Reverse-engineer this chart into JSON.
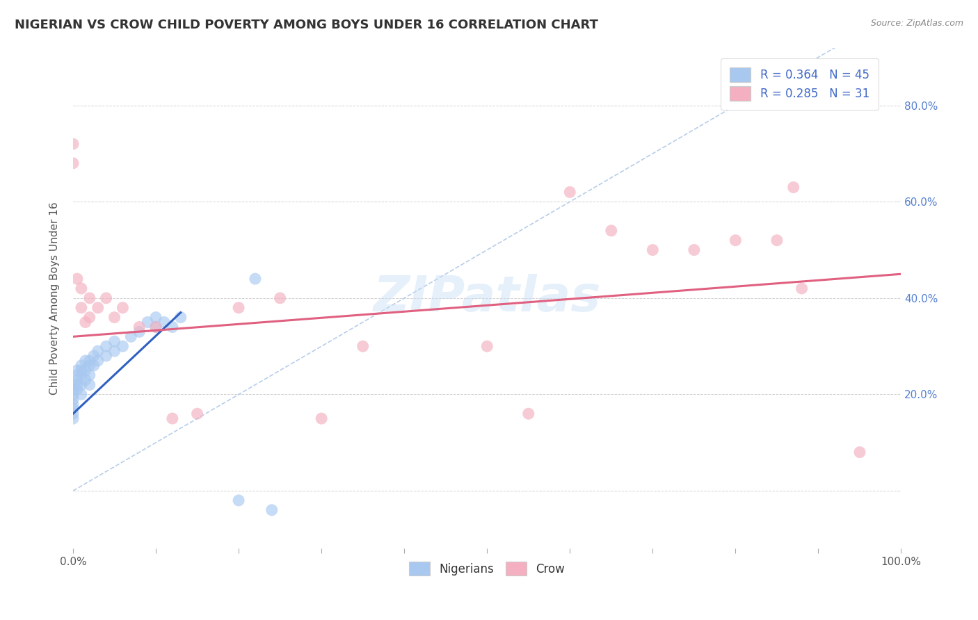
{
  "title": "NIGERIAN VS CROW CHILD POVERTY AMONG BOYS UNDER 16 CORRELATION CHART",
  "source": "Source: ZipAtlas.com",
  "ylabel": "Child Poverty Among Boys Under 16",
  "xlim": [
    0,
    1.0
  ],
  "ylim": [
    -0.12,
    0.92
  ],
  "xtick_positions": [
    0.0,
    0.1,
    0.2,
    0.3,
    0.4,
    0.5,
    0.6,
    0.7,
    0.8,
    0.9,
    1.0
  ],
  "ytick_positions": [
    0.0,
    0.2,
    0.4,
    0.6,
    0.8
  ],
  "ytick_labels": [
    "",
    "20.0%",
    "40.0%",
    "60.0%",
    "80.0%"
  ],
  "background_color": "#ffffff",
  "grid_color": "#cccccc",
  "nigerian_color": "#a8c8f0",
  "crow_color": "#f4b0c0",
  "nigerian_r": 0.364,
  "nigerian_n": 45,
  "crow_r": 0.285,
  "crow_n": 31,
  "legend_color": "#4169c8",
  "yaxis_color": "#5580d0",
  "diag_line_color": "#b0c8e8",
  "nigerian_trend_color": "#3060c0",
  "crow_trend_color": "#e06080",
  "nigerian_x": [
    0.0,
    0.0,
    0.0,
    0.0,
    0.0,
    0.0,
    0.0,
    0.0,
    0.005,
    0.005,
    0.005,
    0.005,
    0.005,
    0.01,
    0.01,
    0.01,
    0.01,
    0.01,
    0.015,
    0.015,
    0.015,
    0.02,
    0.02,
    0.02,
    0.02,
    0.025,
    0.025,
    0.03,
    0.03,
    0.04,
    0.04,
    0.05,
    0.05,
    0.06,
    0.07,
    0.08,
    0.09,
    0.1,
    0.1,
    0.11,
    0.12,
    0.13,
    0.2,
    0.22,
    0.24
  ],
  "nigerian_y": [
    0.22,
    0.21,
    0.2,
    0.19,
    0.18,
    0.17,
    0.16,
    0.15,
    0.25,
    0.24,
    0.23,
    0.22,
    0.21,
    0.26,
    0.25,
    0.24,
    0.22,
    0.2,
    0.27,
    0.25,
    0.23,
    0.27,
    0.26,
    0.24,
    0.22,
    0.28,
    0.26,
    0.29,
    0.27,
    0.3,
    0.28,
    0.31,
    0.29,
    0.3,
    0.32,
    0.33,
    0.35,
    0.36,
    0.34,
    0.35,
    0.34,
    0.36,
    -0.02,
    0.44,
    -0.04
  ],
  "crow_x": [
    0.0,
    0.0,
    0.005,
    0.01,
    0.01,
    0.015,
    0.02,
    0.02,
    0.03,
    0.04,
    0.05,
    0.06,
    0.08,
    0.1,
    0.12,
    0.15,
    0.2,
    0.25,
    0.3,
    0.35,
    0.5,
    0.55,
    0.6,
    0.65,
    0.7,
    0.75,
    0.8,
    0.85,
    0.87,
    0.88,
    0.95
  ],
  "crow_y": [
    0.72,
    0.68,
    0.44,
    0.42,
    0.38,
    0.35,
    0.4,
    0.36,
    0.38,
    0.4,
    0.36,
    0.38,
    0.34,
    0.34,
    0.15,
    0.16,
    0.38,
    0.4,
    0.15,
    0.3,
    0.3,
    0.16,
    0.62,
    0.54,
    0.5,
    0.5,
    0.52,
    0.52,
    0.63,
    0.42,
    0.08
  ],
  "nigerian_trend_x": [
    0.0,
    0.13
  ],
  "nigerian_trend_y": [
    0.16,
    0.37
  ],
  "crow_trend_x": [
    0.0,
    1.0
  ],
  "crow_trend_y": [
    0.32,
    0.45
  ]
}
